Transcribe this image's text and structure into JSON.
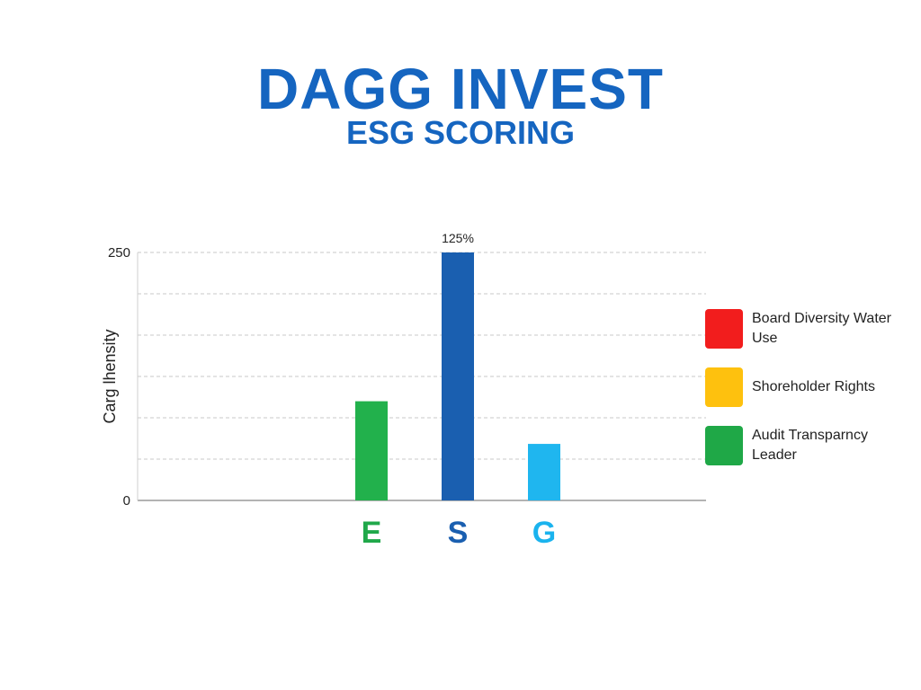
{
  "header": {
    "title": "DAGG INVEST",
    "subtitle": "ESG SCORING"
  },
  "chart_data": {
    "type": "bar",
    "categories": [
      "E",
      "S",
      "G"
    ],
    "values": [
      100,
      250,
      57
    ],
    "category_colors": [
      "#20a84a",
      "#1a5fb0",
      "#1ab3ee"
    ],
    "bar_colors": [
      "#22b14c",
      "#1a5fb0",
      "#1fb6ef"
    ],
    "ylabel": "Carg lhensity",
    "ylim": [
      0,
      250
    ],
    "yticks": [
      0,
      250
    ],
    "gridlines": 6,
    "annotations": [
      {
        "category": "S",
        "text": "125%"
      }
    ],
    "grid": true,
    "legend_position": "right",
    "legend": [
      {
        "label": "Board Diversity Water Use",
        "color": "#f21d1d"
      },
      {
        "label": "Shoreholder Rights",
        "color": "#fec10e"
      },
      {
        "label": "Audit Transparncy Leader",
        "color": "#1fa847"
      }
    ]
  }
}
